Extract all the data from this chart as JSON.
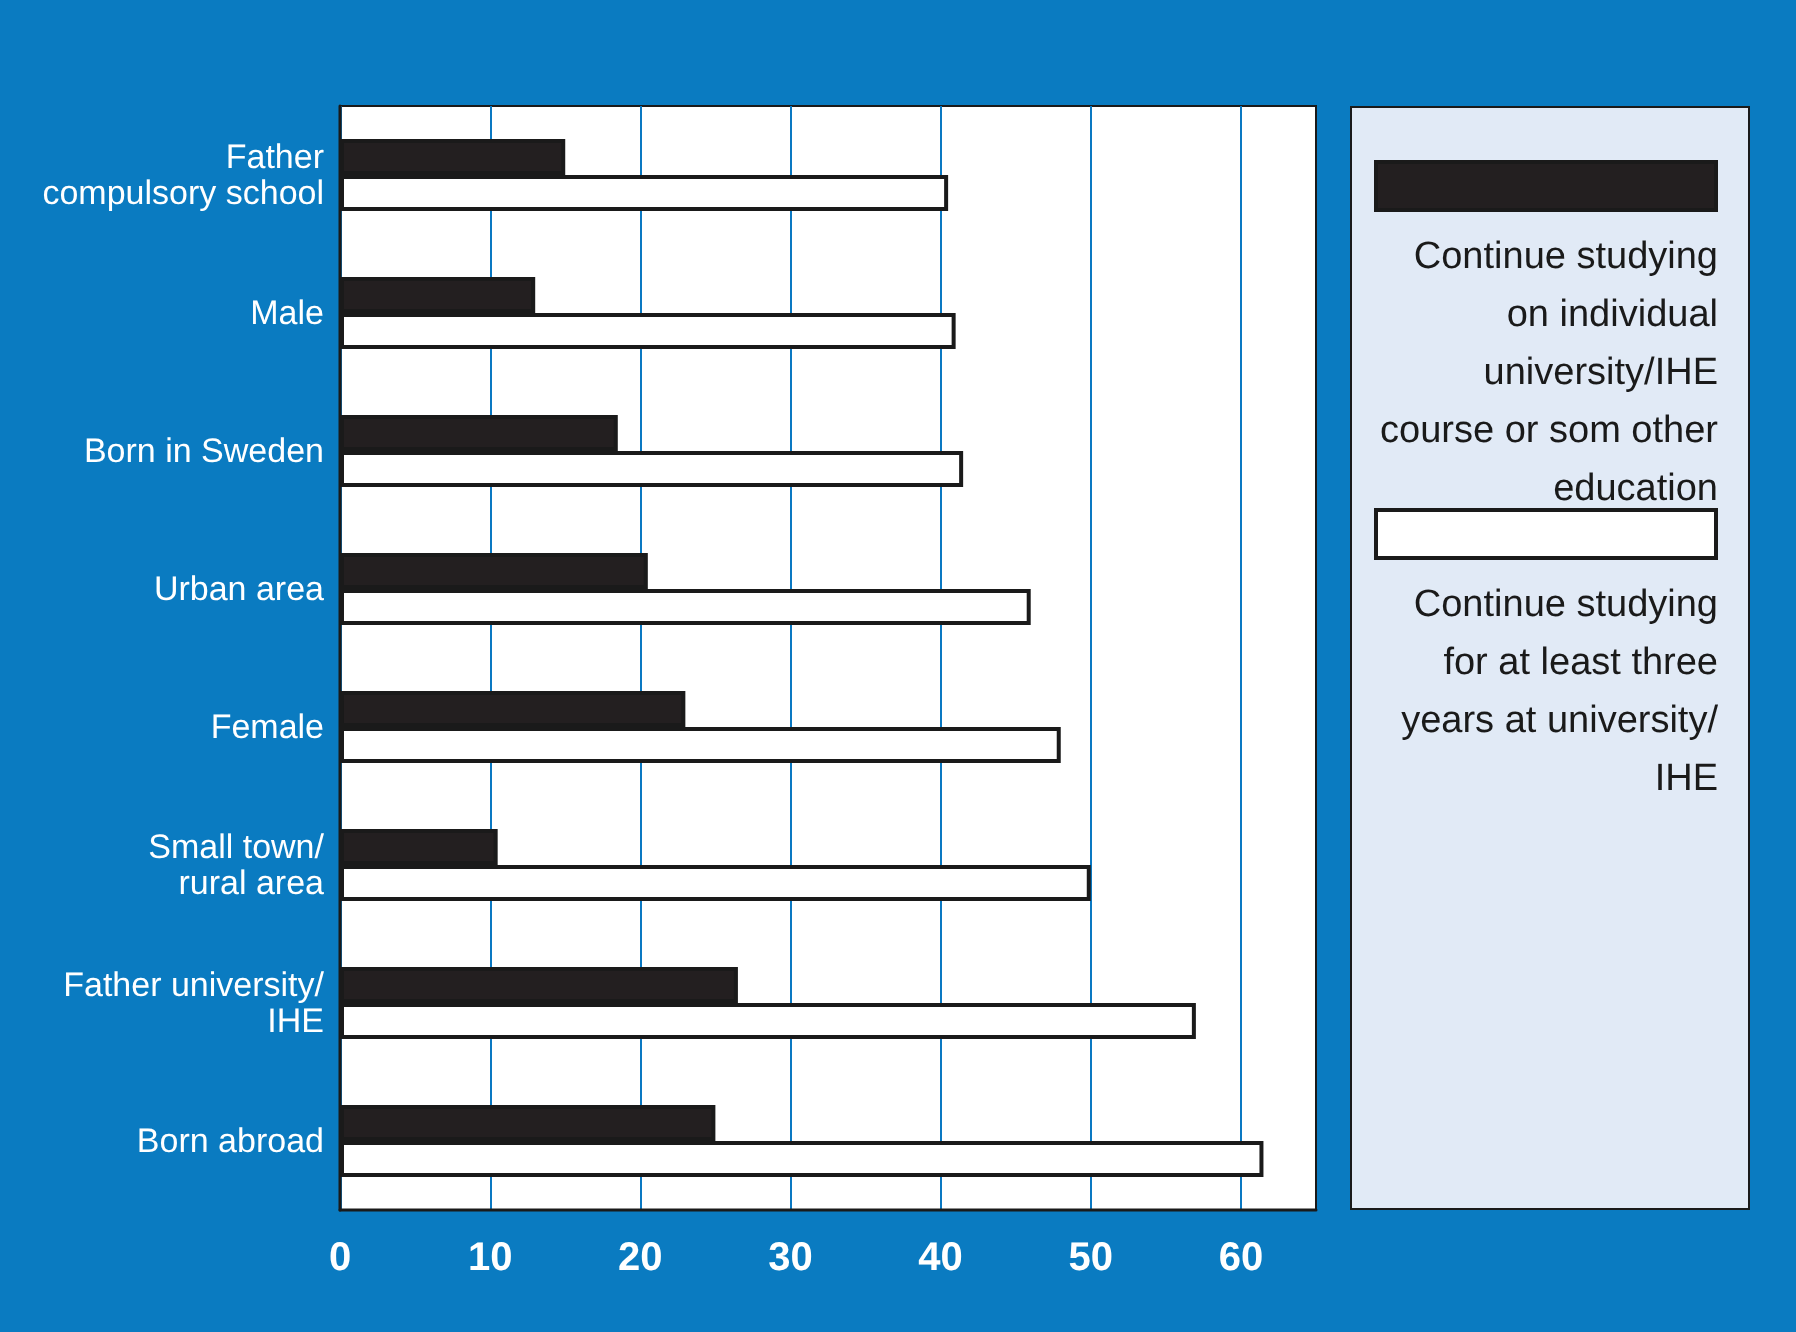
{
  "chart_data": {
    "type": "bar",
    "orientation": "horizontal",
    "categories": [
      "Father\ncompulsory school",
      "Male",
      "Born in Sweden",
      "Urban area",
      "Female",
      "Small town/\nrural area",
      "Father university/\nIHE",
      "Born abroad"
    ],
    "series": [
      {
        "name": "Continue studying on individual university/IHE course or som other education",
        "color": "#231f20",
        "values": [
          15,
          13,
          18.5,
          20.5,
          23,
          10.5,
          26.5,
          25
        ]
      },
      {
        "name": "Continue studying for at least three years at university/ IHE",
        "color": "#ffffff",
        "values": [
          40.5,
          41,
          41.5,
          46,
          48,
          50,
          57,
          61.5
        ]
      }
    ],
    "xlim": [
      0,
      65
    ],
    "xticks": [
      0,
      10,
      20,
      30,
      40,
      50,
      60
    ],
    "grid": "x",
    "legend": "right"
  }
}
